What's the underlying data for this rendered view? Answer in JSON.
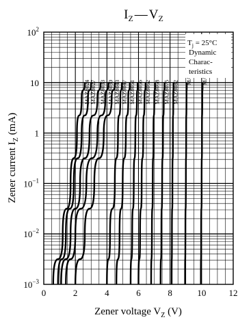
{
  "chart_data": {
    "type": "line",
    "title": "I_Z — V_Z",
    "title_main_1": "I",
    "title_sub_1": "Z",
    "title_dash": "—",
    "title_main_2": "V",
    "title_sub_2": "Z",
    "xlabel": "Zener voltage V_Z (V)",
    "xlabel_pre": "Zener voltage  V",
    "xlabel_sub": "Z",
    "xlabel_post": "  (V)",
    "ylabel": "Zener current I_Z (mA)",
    "ylabel_pre": "Zener current  I",
    "ylabel_sub": "Z",
    "ylabel_post": "  (mA)",
    "xlim": [
      0,
      12
    ],
    "ylim": [
      0.001,
      100
    ],
    "yscale": "log",
    "xticks": [
      "0",
      "2",
      "4",
      "6",
      "8",
      "10",
      "12"
    ],
    "yticks": [
      {
        "value": 100,
        "base": "10",
        "exp": "2"
      },
      {
        "value": 10,
        "base": "10",
        "exp": ""
      },
      {
        "value": 1,
        "base": "1",
        "exp": ""
      },
      {
        "value": 0.1,
        "base": "10",
        "exp": "−1"
      },
      {
        "value": 0.01,
        "base": "10",
        "exp": "−2"
      },
      {
        "value": 0.001,
        "base": "10",
        "exp": "−3"
      }
    ],
    "grid": true,
    "annotation": {
      "line1_pre": "T",
      "line1_sub": "j",
      "line1_post": " = 25°C",
      "line2": "Dynamic",
      "line3": "Charac-",
      "line4": "teristics"
    },
    "series": [
      {
        "name": "MAZ8024",
        "x": [
          0.6,
          1.2,
          1.7,
          2.1,
          2.4,
          2.6
        ],
        "y": [
          0.001,
          0.01,
          0.1,
          1,
          5,
          10
        ]
      },
      {
        "name": "MAZ8027",
        "x": [
          0.9,
          1.4,
          1.9,
          2.4,
          2.8,
          3.0
        ],
        "y": [
          0.001,
          0.01,
          0.1,
          1,
          5,
          10
        ]
      },
      {
        "name": "MAZ8033",
        "x": [
          1.1,
          1.7,
          2.3,
          2.9,
          3.4,
          3.6
        ],
        "y": [
          0.001,
          0.01,
          0.1,
          1,
          5,
          10
        ]
      },
      {
        "name": "MAZ8039",
        "x": [
          1.4,
          2.0,
          2.7,
          3.4,
          3.9,
          4.1
        ],
        "y": [
          0.001,
          0.01,
          0.1,
          1,
          5,
          10
        ]
      },
      {
        "name": "MAZ8043",
        "x": [
          2.0,
          2.6,
          3.2,
          3.8,
          4.3,
          4.5
        ],
        "y": [
          0.001,
          0.01,
          0.1,
          1,
          5,
          10
        ]
      },
      {
        "name": "MAZ8047",
        "x": [
          4.0,
          4.2,
          4.5,
          4.7,
          4.85,
          4.95
        ],
        "y": [
          0.001,
          0.01,
          0.1,
          1,
          5,
          10
        ]
      },
      {
        "name": "MAZ8051",
        "x": [
          4.6,
          4.8,
          5.0,
          5.2,
          5.35,
          5.45
        ],
        "y": [
          0.001,
          0.01,
          0.1,
          1,
          5,
          10
        ]
      },
      {
        "name": "MAZ8056",
        "x": [
          5.5,
          5.6,
          5.7,
          5.8,
          5.9,
          5.95
        ],
        "y": [
          0.001,
          0.01,
          0.1,
          1,
          5,
          10
        ]
      },
      {
        "name": "MAZ8062",
        "x": [
          6.0,
          6.1,
          6.2,
          6.3,
          6.38,
          6.45
        ],
        "y": [
          0.001,
          0.01,
          0.1,
          1,
          5,
          10
        ]
      },
      {
        "name": "MAZ8068",
        "x": [
          6.8,
          6.85,
          6.9,
          6.95,
          7.0,
          7.05
        ],
        "y": [
          0.001,
          0.01,
          0.1,
          1,
          5,
          10
        ]
      },
      {
        "name": "MAZ8075",
        "x": [
          7.4,
          7.45,
          7.5,
          7.55,
          7.6,
          7.65
        ],
        "y": [
          0.001,
          0.01,
          0.1,
          1,
          5,
          10
        ]
      },
      {
        "name": "MAZ8082",
        "x": [
          8.1,
          8.12,
          8.15,
          8.18,
          8.2,
          8.22
        ],
        "y": [
          0.001,
          0.01,
          0.1,
          1,
          5,
          10
        ]
      },
      {
        "name": "MAZ8091",
        "x": [
          8.95,
          8.97,
          9.0,
          9.02,
          9.04,
          9.06
        ],
        "y": [
          0.001,
          0.01,
          0.1,
          1,
          5,
          10
        ]
      },
      {
        "name": "MAZ8100",
        "x": [
          9.95,
          9.97,
          10.0,
          10.02,
          10.04,
          10.06
        ],
        "y": [
          0.001,
          0.01,
          0.1,
          1,
          5,
          10
        ]
      }
    ]
  }
}
